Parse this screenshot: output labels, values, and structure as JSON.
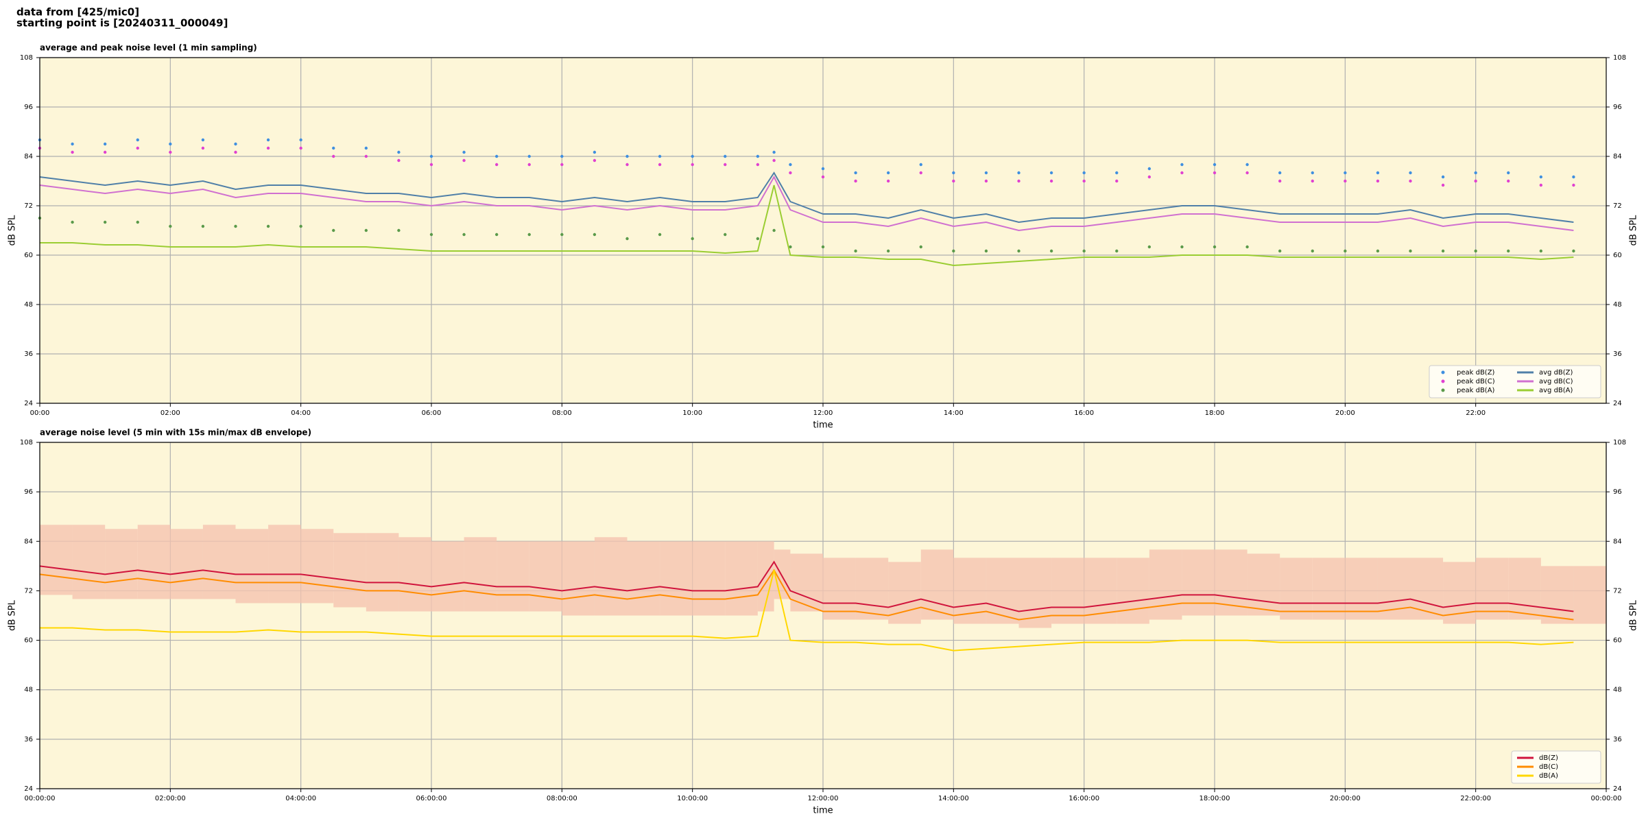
{
  "header": {
    "line1": "data from [425/mic0]",
    "line2": "starting point is [20240311_000049]"
  },
  "chart_data": [
    {
      "type": "line",
      "title": "average and peak noise level (1 min sampling)",
      "x_label": "time",
      "y_label": "dB SPL",
      "xlim": [
        0,
        24
      ],
      "xticks": [
        {
          "value": 0,
          "label": "00:00"
        },
        {
          "value": 2,
          "label": "02:00"
        },
        {
          "value": 4,
          "label": "04:00"
        },
        {
          "value": 6,
          "label": "06:00"
        },
        {
          "value": 8,
          "label": "08:00"
        },
        {
          "value": 10,
          "label": "10:00"
        },
        {
          "value": 12,
          "label": "12:00"
        },
        {
          "value": 14,
          "label": "14:00"
        },
        {
          "value": 16,
          "label": "16:00"
        },
        {
          "value": 18,
          "label": "18:00"
        },
        {
          "value": 20,
          "label": "20:00"
        },
        {
          "value": 22,
          "label": "22:00"
        }
      ],
      "ylim": [
        24,
        108
      ],
      "yticks": [
        24,
        36,
        48,
        60,
        72,
        84,
        96,
        108
      ],
      "grid": true,
      "legend": "lower right",
      "legend_columns": 2,
      "background": "#fdf6d8",
      "x": [
        0,
        0.5,
        1,
        1.5,
        2,
        2.5,
        3,
        3.5,
        4,
        4.5,
        5,
        5.5,
        6,
        6.5,
        7,
        7.5,
        8,
        8.5,
        9,
        9.5,
        10,
        10.5,
        11,
        11.25,
        11.5,
        12,
        12.5,
        13,
        13.5,
        14,
        14.5,
        15,
        15.5,
        16,
        16.5,
        17,
        17.5,
        18,
        18.5,
        19,
        19.5,
        20,
        20.5,
        21,
        21.5,
        22,
        22.5,
        23,
        23.5
      ],
      "series": [
        {
          "name": "peak dB(Z)",
          "type": "scatter",
          "color": "#3f8fe0",
          "values": [
            88,
            87,
            87,
            88,
            87,
            88,
            87,
            88,
            88,
            86,
            86,
            85,
            84,
            85,
            84,
            84,
            84,
            85,
            84,
            84,
            84,
            84,
            84,
            85,
            82,
            81,
            80,
            80,
            82,
            80,
            80,
            80,
            80,
            80,
            80,
            81,
            82,
            82,
            82,
            80,
            80,
            80,
            80,
            80,
            79,
            80,
            80,
            79,
            79
          ]
        },
        {
          "name": "peak dB(C)",
          "type": "scatter",
          "color": "#e040d0",
          "values": [
            86,
            85,
            85,
            86,
            85,
            86,
            85,
            86,
            86,
            84,
            84,
            83,
            82,
            83,
            82,
            82,
            82,
            83,
            82,
            82,
            82,
            82,
            82,
            83,
            80,
            79,
            78,
            78,
            80,
            78,
            78,
            78,
            78,
            78,
            78,
            79,
            80,
            80,
            80,
            78,
            78,
            78,
            78,
            78,
            77,
            78,
            78,
            77,
            77
          ]
        },
        {
          "name": "peak dB(A)",
          "type": "scatter",
          "color": "#5a9a4a",
          "values": [
            69,
            68,
            68,
            68,
            67,
            67,
            67,
            67,
            67,
            66,
            66,
            66,
            65,
            65,
            65,
            65,
            65,
            65,
            64,
            65,
            64,
            65,
            64,
            66,
            62,
            62,
            61,
            61,
            62,
            61,
            61,
            61,
            61,
            61,
            61,
            62,
            62,
            62,
            62,
            61,
            61,
            61,
            61,
            61,
            61,
            61,
            61,
            61,
            61
          ]
        },
        {
          "name": "avg dB(Z)",
          "type": "line",
          "color": "#4f7fa8",
          "values": [
            79,
            78,
            77,
            78,
            77,
            78,
            76,
            77,
            77,
            76,
            75,
            75,
            74,
            75,
            74,
            74,
            73,
            74,
            73,
            74,
            73,
            73,
            74,
            80,
            73,
            70,
            70,
            69,
            71,
            69,
            70,
            68,
            69,
            69,
            70,
            71,
            72,
            72,
            71,
            70,
            70,
            70,
            70,
            71,
            69,
            70,
            70,
            69,
            68
          ]
        },
        {
          "name": "avg dB(C)",
          "type": "line",
          "color": "#d070d0",
          "values": [
            77,
            76,
            75,
            76,
            75,
            76,
            74,
            75,
            75,
            74,
            73,
            73,
            72,
            73,
            72,
            72,
            71,
            72,
            71,
            72,
            71,
            71,
            72,
            79,
            71,
            68,
            68,
            67,
            69,
            67,
            68,
            66,
            67,
            67,
            68,
            69,
            70,
            70,
            69,
            68,
            68,
            68,
            68,
            69,
            67,
            68,
            68,
            67,
            66
          ]
        },
        {
          "name": "avg dB(A)",
          "type": "line",
          "color": "#9acd32",
          "values": [
            63,
            63,
            62.5,
            62.5,
            62,
            62,
            62,
            62.5,
            62,
            62,
            62,
            61.5,
            61,
            61,
            61,
            61,
            61,
            61,
            61,
            61,
            61,
            60.5,
            61,
            77,
            60,
            59.5,
            59.5,
            59,
            59,
            57.5,
            58,
            58.5,
            59,
            59.5,
            59.5,
            59.5,
            60,
            60,
            60,
            59.5,
            59.5,
            59.5,
            59.5,
            59.5,
            59.5,
            59.5,
            59.5,
            59,
            59.5
          ]
        }
      ]
    },
    {
      "type": "line",
      "title": "average noise level (5 min with 15s min/max dB envelope)",
      "x_label": "time",
      "y_label": "dB SPL",
      "xlim": [
        0,
        24
      ],
      "xticks": [
        {
          "value": 0,
          "label": "00:00:00"
        },
        {
          "value": 2,
          "label": "02:00:00"
        },
        {
          "value": 4,
          "label": "04:00:00"
        },
        {
          "value": 6,
          "label": "06:00:00"
        },
        {
          "value": 8,
          "label": "08:00:00"
        },
        {
          "value": 10,
          "label": "10:00:00"
        },
        {
          "value": 12,
          "label": "12:00:00"
        },
        {
          "value": 14,
          "label": "14:00:00"
        },
        {
          "value": 16,
          "label": "16:00:00"
        },
        {
          "value": 18,
          "label": "18:00:00"
        },
        {
          "value": 20,
          "label": "20:00:00"
        },
        {
          "value": 22,
          "label": "22:00:00"
        },
        {
          "value": 24,
          "label": "00:00:00"
        }
      ],
      "ylim": [
        24,
        108
      ],
      "yticks": [
        24,
        36,
        48,
        60,
        72,
        84,
        96,
        108
      ],
      "grid": true,
      "legend": "lower right",
      "legend_columns": 1,
      "background": "#fdf6d8",
      "x": [
        0,
        0.5,
        1,
        1.5,
        2,
        2.5,
        3,
        3.5,
        4,
        4.5,
        5,
        5.5,
        6,
        6.5,
        7,
        7.5,
        8,
        8.5,
        9,
        9.5,
        10,
        10.5,
        11,
        11.25,
        11.5,
        12,
        12.5,
        13,
        13.5,
        14,
        14.5,
        15,
        15.5,
        16,
        16.5,
        17,
        17.5,
        18,
        18.5,
        19,
        19.5,
        20,
        20.5,
        21,
        21.5,
        22,
        22.5,
        23,
        23.5
      ],
      "envelope": {
        "color": "#f5c4b0",
        "max": [
          88,
          88,
          87,
          88,
          87,
          88,
          87,
          88,
          87,
          86,
          86,
          85,
          84,
          85,
          84,
          84,
          84,
          85,
          84,
          84,
          84,
          84,
          84,
          82,
          81,
          80,
          80,
          79,
          82,
          80,
          80,
          80,
          80,
          80,
          80,
          82,
          82,
          82,
          81,
          80,
          80,
          80,
          80,
          80,
          79,
          80,
          80,
          78,
          78
        ],
        "min": [
          71,
          70,
          70,
          70,
          70,
          70,
          69,
          69,
          69,
          68,
          67,
          67,
          67,
          67,
          67,
          67,
          66,
          66,
          66,
          66,
          66,
          66,
          67,
          70,
          67,
          65,
          65,
          64,
          65,
          64,
          64,
          63,
          64,
          64,
          64,
          65,
          66,
          66,
          66,
          65,
          65,
          65,
          65,
          65,
          64,
          65,
          65,
          64,
          64
        ]
      },
      "series": [
        {
          "name": "dB(Z)",
          "type": "line",
          "color": "#d0143c",
          "values": [
            78,
            77,
            76,
            77,
            76,
            77,
            76,
            76,
            76,
            75,
            74,
            74,
            73,
            74,
            73,
            73,
            72,
            73,
            72,
            73,
            72,
            72,
            73,
            79,
            72,
            69,
            69,
            68,
            70,
            68,
            69,
            67,
            68,
            68,
            69,
            70,
            71,
            71,
            70,
            69,
            69,
            69,
            69,
            70,
            68,
            69,
            69,
            68,
            67
          ]
        },
        {
          "name": "dB(C)",
          "type": "line",
          "color": "#ff8c00",
          "values": [
            76,
            75,
            74,
            75,
            74,
            75,
            74,
            74,
            74,
            73,
            72,
            72,
            71,
            72,
            71,
            71,
            70,
            71,
            70,
            71,
            70,
            70,
            71,
            77,
            70,
            67,
            67,
            66,
            68,
            66,
            67,
            65,
            66,
            66,
            67,
            68,
            69,
            69,
            68,
            67,
            67,
            67,
            67,
            68,
            66,
            67,
            67,
            66,
            65
          ]
        },
        {
          "name": "dB(A)",
          "type": "line",
          "color": "#ffd700",
          "values": [
            63,
            63,
            62.5,
            62.5,
            62,
            62,
            62,
            62.5,
            62,
            62,
            62,
            61.5,
            61,
            61,
            61,
            61,
            61,
            61,
            61,
            61,
            61,
            60.5,
            61,
            77,
            60,
            59.5,
            59.5,
            59,
            59,
            57.5,
            58,
            58.5,
            59,
            59.5,
            59.5,
            59.5,
            60,
            60,
            60,
            59.5,
            59.5,
            59.5,
            59.5,
            59.5,
            59.5,
            59.5,
            59.5,
            59,
            59.5
          ]
        }
      ]
    }
  ]
}
